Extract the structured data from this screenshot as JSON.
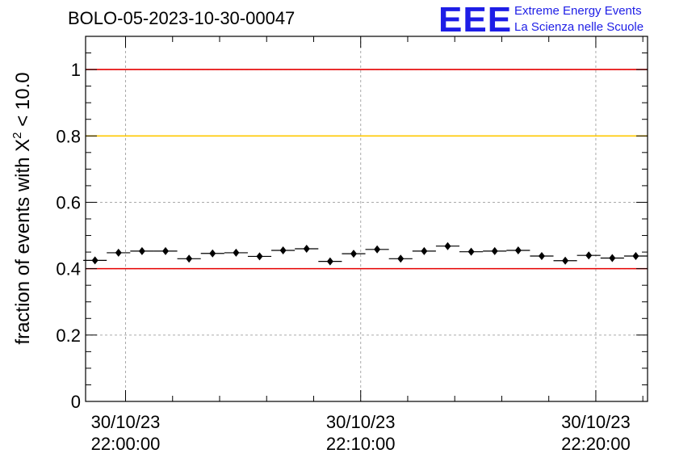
{
  "title": "BOLO-05-2023-10-30-00047",
  "logo": {
    "mark": "EEE",
    "line1": "Extreme Energy Events",
    "line2": "La Scienza nelle Scuole",
    "color": "#1e1ee6"
  },
  "chart_data": {
    "type": "scatter",
    "title": "BOLO-05-2023-10-30-00047",
    "ylabel_prefix": "fraction of events with ",
    "ylabel_symbol": "X",
    "ylabel_sup": "2",
    "ylabel_suffix": " < 10.0",
    "ylim": [
      0,
      1.1
    ],
    "yticks": [
      "0",
      "0.2",
      "0.4",
      "0.6",
      "0.8",
      "1"
    ],
    "ytick_values": [
      0,
      0.2,
      0.4,
      0.6,
      0.8,
      1.0
    ],
    "x_unit": "minutes after 30/10/23 22:00:00",
    "xlim": [
      -1.7,
      22.2
    ],
    "xticks": [
      {
        "x": 0,
        "date": "30/10/23",
        "time": "22:00:00"
      },
      {
        "x": 10,
        "date": "30/10/23",
        "time": "22:10:00"
      },
      {
        "x": 20,
        "date": "30/10/23",
        "time": "22:20:00"
      }
    ],
    "grid": true,
    "ref_lines": [
      {
        "y": 1.0,
        "color": "#e60000"
      },
      {
        "y": 0.8,
        "color": "#ffc800"
      },
      {
        "y": 0.4,
        "color": "#e60000"
      }
    ],
    "bin_halfwidth": 0.5,
    "x": [
      -1.3,
      -0.3,
      0.7,
      1.7,
      2.7,
      3.7,
      4.7,
      5.7,
      6.7,
      7.7,
      8.7,
      9.7,
      10.7,
      11.7,
      12.7,
      13.7,
      14.7,
      15.7,
      16.7,
      17.7,
      18.7,
      19.7,
      20.7,
      21.7
    ],
    "y": [
      0.425,
      0.448,
      0.453,
      0.453,
      0.43,
      0.446,
      0.448,
      0.437,
      0.455,
      0.46,
      0.422,
      0.445,
      0.458,
      0.43,
      0.453,
      0.468,
      0.451,
      0.453,
      0.455,
      0.438,
      0.424,
      0.44,
      0.432,
      0.438
    ],
    "yerr": 0.006
  }
}
